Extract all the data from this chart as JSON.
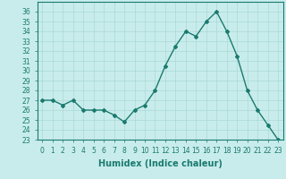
{
  "x": [
    0,
    1,
    2,
    3,
    4,
    5,
    6,
    7,
    8,
    9,
    10,
    11,
    12,
    13,
    14,
    15,
    16,
    17,
    18,
    19,
    20,
    21,
    22,
    23
  ],
  "y": [
    27,
    27,
    26.5,
    27,
    26,
    26,
    26,
    25.5,
    24.8,
    26,
    26.5,
    28,
    30.5,
    32.5,
    34,
    33.5,
    35,
    36,
    34,
    31.5,
    28,
    26,
    24.5,
    23
  ],
  "line_color": "#1a7a6e",
  "marker": "D",
  "marker_size": 2,
  "bg_color": "#c8ecec",
  "grid_color": "#aad8d4",
  "xlabel": "Humidex (Indice chaleur)",
  "ylim": [
    23,
    37
  ],
  "xlim": [
    -0.5,
    23.5
  ],
  "yticks": [
    23,
    24,
    25,
    26,
    27,
    28,
    29,
    30,
    31,
    32,
    33,
    34,
    35,
    36
  ],
  "xticks": [
    0,
    1,
    2,
    3,
    4,
    5,
    6,
    7,
    8,
    9,
    10,
    11,
    12,
    13,
    14,
    15,
    16,
    17,
    18,
    19,
    20,
    21,
    22,
    23
  ],
  "xtick_labels": [
    "0",
    "1",
    "2",
    "3",
    "4",
    "5",
    "6",
    "7",
    "8",
    "9",
    "10",
    "11",
    "12",
    "13",
    "14",
    "15",
    "16",
    "17",
    "18",
    "19",
    "20",
    "21",
    "22",
    "23"
  ],
  "axis_color": "#1a7a6e",
  "tick_color": "#1a7a6e",
  "label_fontsize": 7,
  "tick_fontsize": 5.5,
  "xlabel_fontsize": 7,
  "linewidth": 1.0
}
